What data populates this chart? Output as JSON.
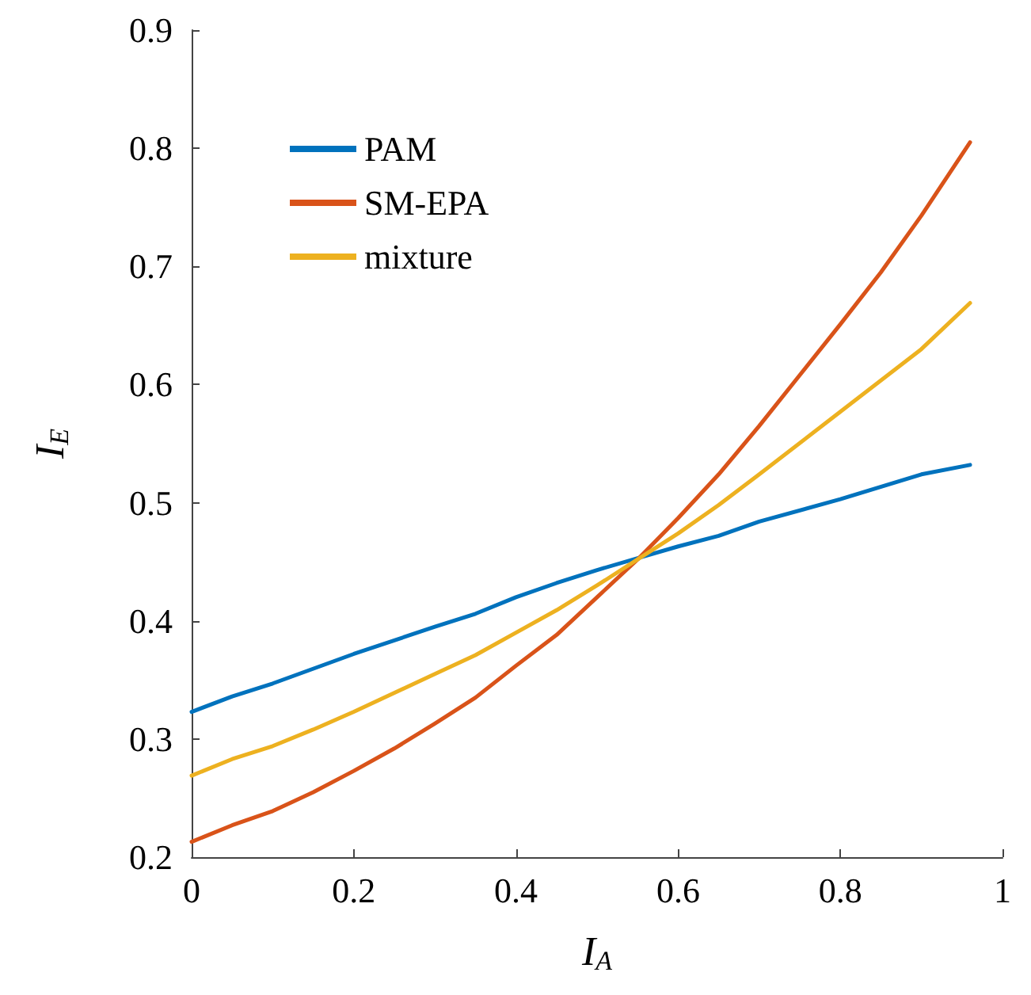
{
  "chart_data": {
    "type": "line",
    "xlabel": "I$_{A}$",
    "ylabel": "I$_{E}$",
    "xlim": [
      0,
      1
    ],
    "xticks": [
      0,
      0.2,
      0.4,
      0.6,
      0.8,
      1
    ],
    "ylim": [
      0.2,
      0.9
    ],
    "yticks": [
      0.2,
      0.3,
      0.4,
      0.5,
      0.6,
      0.7,
      0.8,
      0.9
    ],
    "grid": false,
    "legend": "top left",
    "marker": "none",
    "line_style": "solid",
    "series": [
      {
        "name": "PAM",
        "color": "#0072bd",
        "x": [
          0,
          0.05,
          0.1,
          0.2,
          0.3,
          0.35,
          0.4,
          0.45,
          0.5,
          0.55,
          0.6,
          0.65,
          0.7,
          0.8,
          0.9,
          0.96
        ],
        "values": [
          0.323,
          0.336,
          0.347,
          0.372,
          0.395,
          0.406,
          0.42,
          0.432,
          0.443,
          0.453,
          0.463,
          0.472,
          0.484,
          0.503,
          0.524,
          0.532
        ]
      },
      {
        "name": "SM-EPA",
        "color": "#d95319",
        "x": [
          0,
          0.05,
          0.1,
          0.15,
          0.2,
          0.25,
          0.3,
          0.35,
          0.4,
          0.45,
          0.5,
          0.55,
          0.6,
          0.65,
          0.7,
          0.75,
          0.8,
          0.85,
          0.9,
          0.96
        ],
        "values": [
          0.213,
          0.227,
          0.239,
          0.255,
          0.273,
          0.292,
          0.313,
          0.335,
          0.362,
          0.388,
          0.42,
          0.452,
          0.487,
          0.524,
          0.565,
          0.608,
          0.651,
          0.695,
          0.743,
          0.805
        ]
      },
      {
        "name": "mixture",
        "color": "#edb120",
        "x": [
          0,
          0.05,
          0.1,
          0.15,
          0.2,
          0.3,
          0.35,
          0.4,
          0.45,
          0.5,
          0.55,
          0.6,
          0.65,
          0.7,
          0.8,
          0.9,
          0.96
        ],
        "values": [
          0.269,
          0.283,
          0.294,
          0.308,
          0.323,
          0.355,
          0.371,
          0.39,
          0.409,
          0.43,
          0.452,
          0.474,
          0.498,
          0.524,
          0.577,
          0.63,
          0.669
        ]
      }
    ]
  }
}
